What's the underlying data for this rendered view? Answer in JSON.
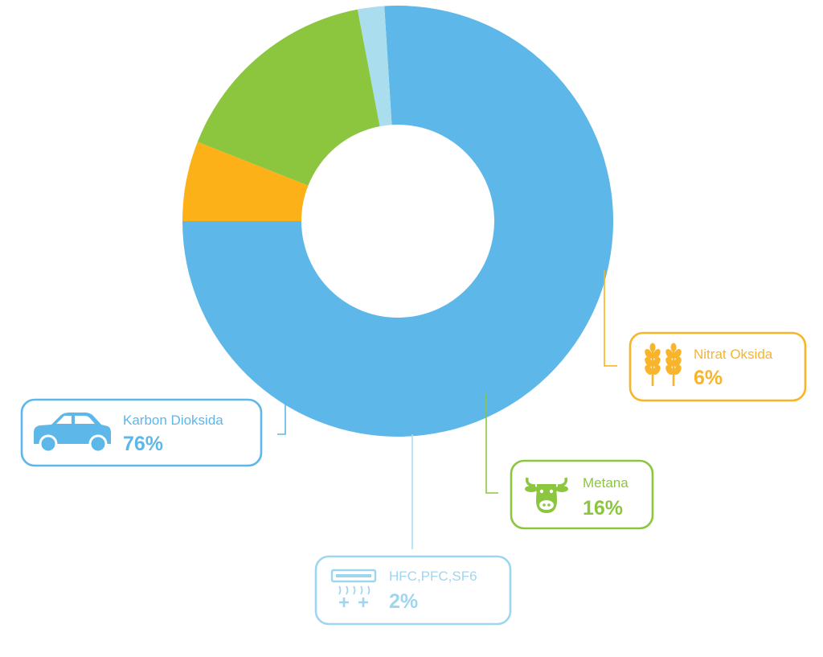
{
  "chart_data": {
    "type": "pie",
    "variant": "donut",
    "start_angle_deg": 180,
    "direction": "counterclockwise",
    "slices": [
      {
        "label": "Karbon Dioksida",
        "value": 76,
        "display": "76%",
        "color": "#5db7e8",
        "text_color": "#5db7e8",
        "icon": "car-icon"
      },
      {
        "label": "HFC,PFC,SF6",
        "value": 2,
        "display": "2%",
        "color": "#aadeee",
        "text_color": "#9fd6ef",
        "icon": "air-conditioner-icon"
      },
      {
        "label": "Metana",
        "value": 16,
        "display": "16%",
        "color": "#8cc63f",
        "text_color": "#8cc63f",
        "icon": "cow-icon"
      },
      {
        "label": "Nitrat Oksida",
        "value": 6,
        "display": "6%",
        "color": "#fbb117",
        "text_color": "#f8b42a",
        "icon": "wheat-icon"
      }
    ]
  }
}
